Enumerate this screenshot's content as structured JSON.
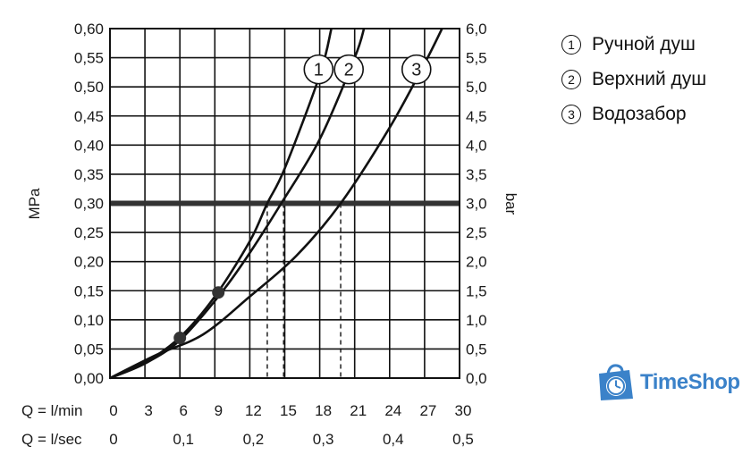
{
  "chart_data": {
    "type": "line",
    "xlabel_rows": [
      {
        "label": "Q = l/min",
        "ticks": [
          "0",
          "3",
          "6",
          "9",
          "12",
          "15",
          "18",
          "21",
          "24",
          "27",
          "30"
        ],
        "values": [
          0,
          3,
          6,
          9,
          12,
          15,
          18,
          21,
          24,
          27,
          30
        ]
      },
      {
        "label": "Q = l/sec",
        "ticks": [
          "0",
          "0,1",
          "0,2",
          "0,3",
          "0,4",
          "0,5"
        ],
        "values": [
          0,
          6,
          12,
          18,
          24,
          30
        ]
      }
    ],
    "ylabel_left": "MPa",
    "ylabel_right": "bar",
    "y_ticks_left": [
      "0,00",
      "0,05",
      "0,10",
      "0,15",
      "0,20",
      "0,25",
      "0,30",
      "0,35",
      "0,40",
      "0,45",
      "0,50",
      "0,55",
      "0,60"
    ],
    "y_ticks_right": [
      "0,0",
      "0,5",
      "1,0",
      "1,5",
      "2,0",
      "2,5",
      "3,0",
      "3,5",
      "4,0",
      "4,5",
      "5,0",
      "5,5",
      "6,0"
    ],
    "xlim": [
      0,
      30
    ],
    "ylim": [
      0,
      0.6
    ],
    "grid": true,
    "reference_line": {
      "y": 0.3
    },
    "series": [
      {
        "label": "1",
        "x": [
          0,
          3,
          6,
          9,
          12,
          13.5,
          15,
          18,
          19
        ],
        "y": [
          0,
          0.027,
          0.07,
          0.14,
          0.235,
          0.3,
          0.36,
          0.52,
          0.6
        ]
      },
      {
        "label": "2",
        "x": [
          0,
          3,
          6,
          9.5,
          12,
          14.7,
          18,
          21,
          21.8
        ],
        "y": [
          0,
          0.025,
          0.065,
          0.145,
          0.215,
          0.3,
          0.41,
          0.55,
          0.6
        ]
      },
      {
        "label": "3",
        "x": [
          0,
          4,
          8,
          12,
          16,
          19.8,
          24,
          27,
          28.5
        ],
        "y": [
          0,
          0.04,
          0.075,
          0.14,
          0.21,
          0.3,
          0.43,
          0.54,
          0.6
        ]
      }
    ],
    "markers": [
      {
        "x": 6,
        "y": 0.069
      },
      {
        "x": 9.3,
        "y": 0.147
      }
    ],
    "dashed_drops": [
      13.5,
      14.9,
      19.8
    ],
    "curve_labels": [
      {
        "text": "1",
        "x": 17.9,
        "y": 0.53
      },
      {
        "text": "2",
        "x": 20.5,
        "y": 0.53
      },
      {
        "text": "3",
        "x": 26.3,
        "y": 0.53
      }
    ]
  },
  "legend": {
    "items": [
      {
        "marker": "1",
        "label": "Ручной душ"
      },
      {
        "marker": "2",
        "label": "Верхний душ"
      },
      {
        "marker": "3",
        "label": "Водозабор"
      }
    ]
  },
  "logo": {
    "text": "TimeShop",
    "icon": "shopping-bag-clock-icon",
    "color": "#3b82c9"
  }
}
